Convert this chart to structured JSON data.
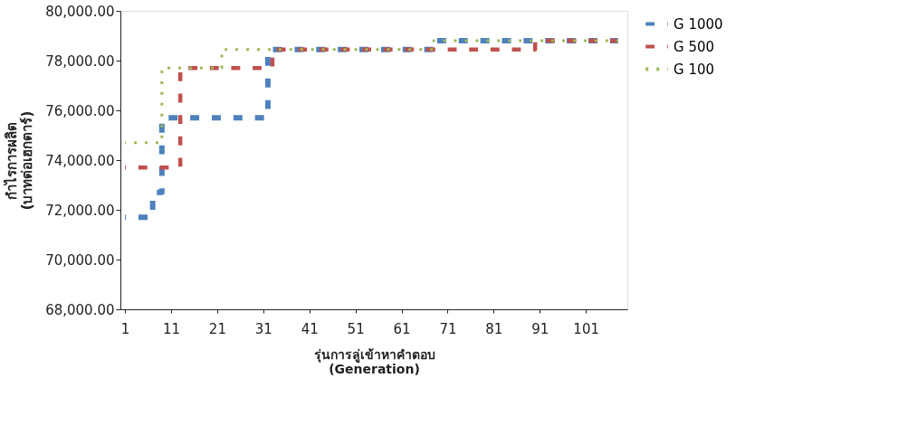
{
  "chart_data": {
    "type": "step",
    "xlabel": [
      "รุ่นการลู่เข้าหาคำตอบ",
      "(Generation)"
    ],
    "ylabel": [
      "กำไรการผลิต",
      "(บาทต่อเฮกตาร์)"
    ],
    "series": [
      {
        "name": "G 1000",
        "color": "#4f81bd",
        "line_style": "dashed",
        "x": [
          1,
          7,
          9,
          32,
          68,
          108
        ],
        "values": [
          71700,
          72700,
          75700,
          78450,
          78800,
          78800
        ]
      },
      {
        "name": "G 500",
        "color": "#c0504d",
        "line_style": "dashed",
        "x": [
          1,
          13,
          33,
          90,
          108
        ],
        "values": [
          73700,
          77700,
          78450,
          78800,
          78800
        ]
      },
      {
        "name": "G 100",
        "color": "#9bbb59",
        "line_style": "dotted",
        "x": [
          1,
          9,
          22,
          68,
          108
        ],
        "values": [
          74700,
          77700,
          78450,
          78800,
          78800
        ]
      }
    ],
    "xlim": [
      0,
      110
    ],
    "xticks": [
      1,
      11,
      21,
      31,
      41,
      51,
      61,
      71,
      81,
      91,
      101
    ],
    "ylim": [
      68000,
      80000
    ],
    "yticks": [
      {
        "value": 68000,
        "label": "68,000.00"
      },
      {
        "value": 70000,
        "label": "70,000.00"
      },
      {
        "value": 72000,
        "label": "72,000.00"
      },
      {
        "value": 74000,
        "label": "74,000.00"
      },
      {
        "value": 76000,
        "label": "76,000.00"
      },
      {
        "value": 78000,
        "label": "78,000.00"
      },
      {
        "value": 80000,
        "label": "80,000.00"
      }
    ],
    "grid": false,
    "legend": "right"
  }
}
